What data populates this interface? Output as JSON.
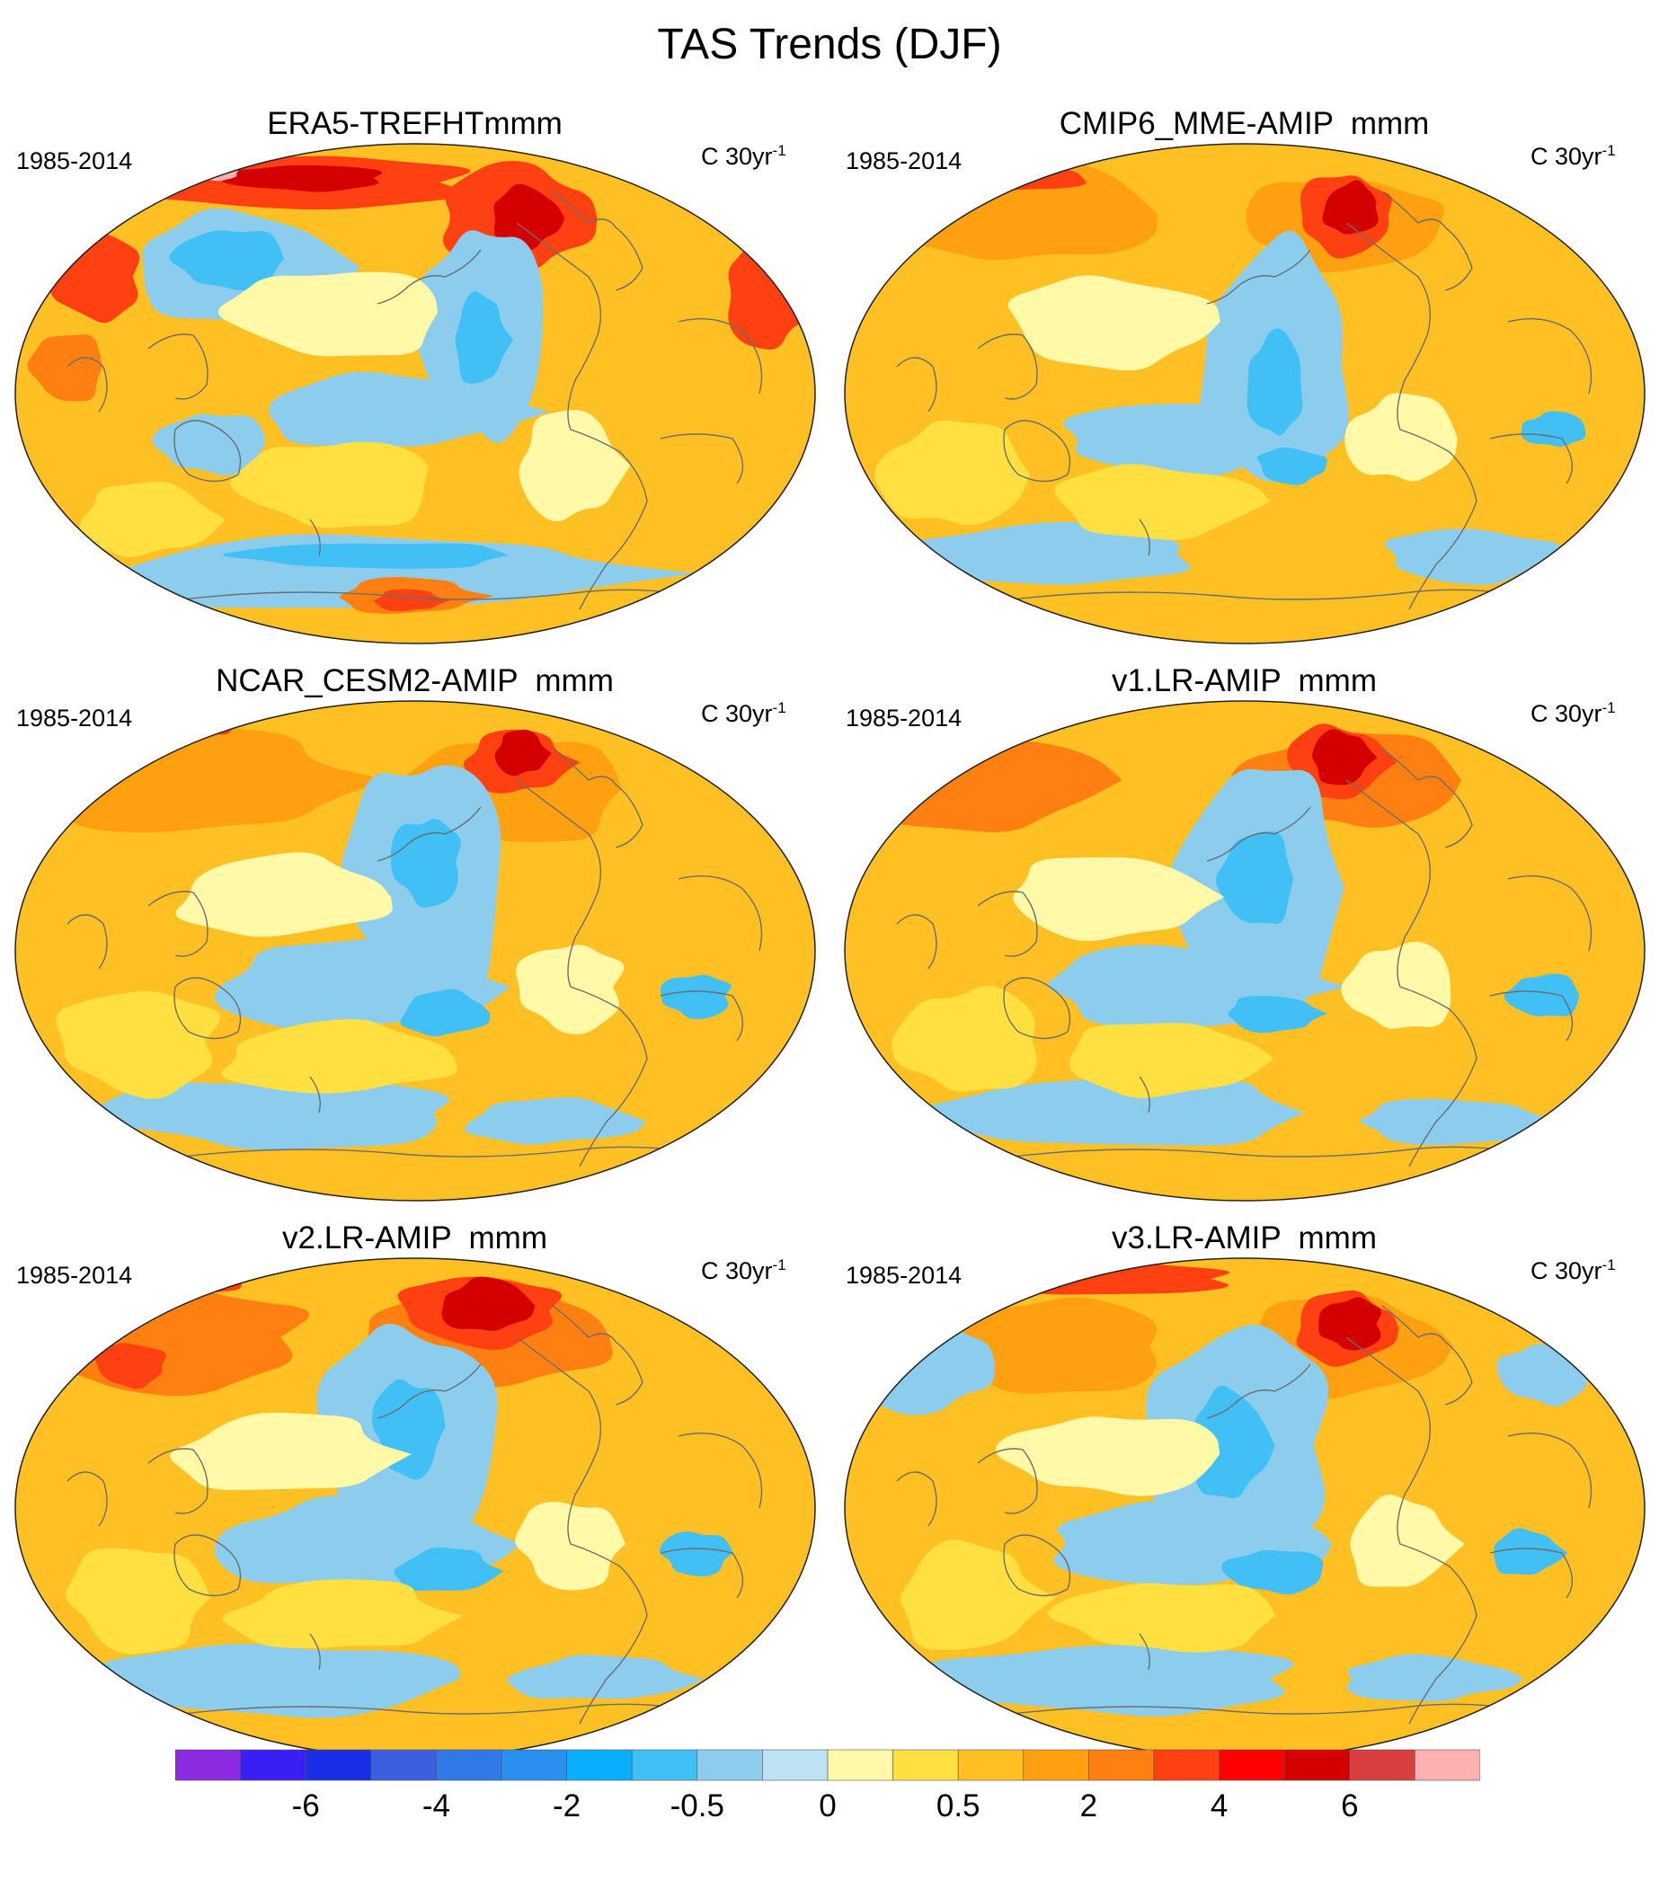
{
  "title": "TAS Trends (DJF)",
  "panels": [
    {
      "title": "ERA5-TREFHTmmm",
      "left_label": "1985-2014",
      "units": "C 30yr",
      "units_sup": "-1",
      "style": "era5"
    },
    {
      "title": "CMIP6_MME-AMIP  mmm",
      "left_label": "1985-2014",
      "units": "C 30yr",
      "units_sup": "-1",
      "style": "cmip"
    },
    {
      "title": "NCAR_CESM2-AMIP  mmm",
      "left_label": "1985-2014",
      "units": "C 30yr",
      "units_sup": "-1",
      "style": "cesm"
    },
    {
      "title": "v1.LR-AMIP  mmm",
      "left_label": "1985-2014",
      "units": "C 30yr",
      "units_sup": "-1",
      "style": "v1"
    },
    {
      "title": "v2.LR-AMIP  mmm",
      "left_label": "1985-2014",
      "units": "C 30yr",
      "units_sup": "-1",
      "style": "v2"
    },
    {
      "title": "v3.LR-AMIP  mmm",
      "left_label": "1985-2014",
      "units": "C 30yr",
      "units_sup": "-1",
      "style": "v3"
    }
  ],
  "colorbar": {
    "colors": [
      "#8a2be2",
      "#3a1ff5",
      "#1a2ee8",
      "#3b5fe0",
      "#2f7ae6",
      "#2a90f0",
      "#0aaeff",
      "#40c0f5",
      "#8ccdee",
      "#bde3f5",
      "#fff9a8",
      "#ffe040",
      "#ffc024",
      "#ffa010",
      "#ff8010",
      "#ff4010",
      "#ff0000",
      "#d40000",
      "#d84040",
      "#ffb0b0"
    ],
    "labels": [
      "-6",
      "-4",
      "-2",
      "-0.5",
      "0",
      "0.5",
      "2",
      "4",
      "6"
    ],
    "label_boundaries": [
      2,
      4,
      6,
      8,
      10,
      12,
      14,
      16,
      18
    ]
  }
}
